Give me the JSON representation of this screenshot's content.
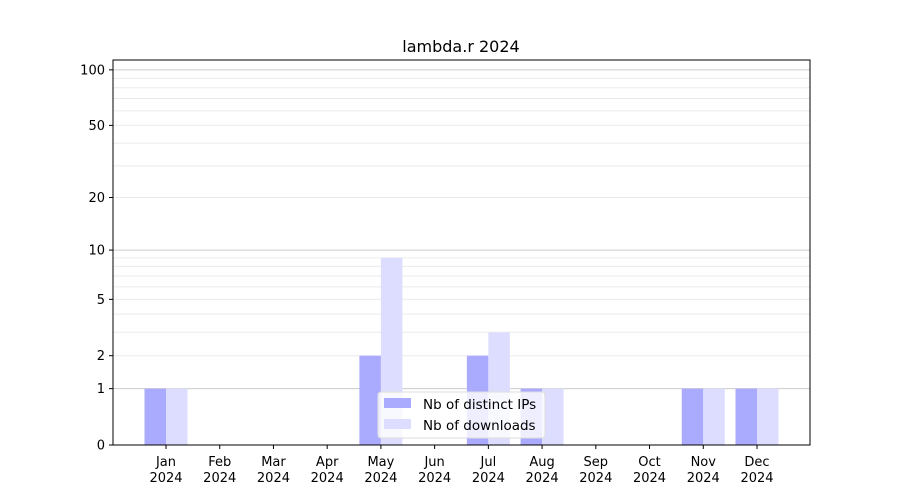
{
  "chart_data": {
    "type": "bar",
    "title": "lambda.r 2024",
    "xlabel": "",
    "ylabel": "",
    "y_scale": "symlog (log10(1+y))",
    "ylim": [
      0,
      113
    ],
    "yticks": [
      0,
      1,
      2,
      5,
      10,
      20,
      50,
      100
    ],
    "grid": true,
    "legend_position": "lower center",
    "categories": [
      [
        "Jan",
        "2024"
      ],
      [
        "Feb",
        "2024"
      ],
      [
        "Mar",
        "2024"
      ],
      [
        "Apr",
        "2024"
      ],
      [
        "May",
        "2024"
      ],
      [
        "Jun",
        "2024"
      ],
      [
        "Jul",
        "2024"
      ],
      [
        "Aug",
        "2024"
      ],
      [
        "Sep",
        "2024"
      ],
      [
        "Oct",
        "2024"
      ],
      [
        "Nov",
        "2024"
      ],
      [
        "Dec",
        "2024"
      ]
    ],
    "series": [
      {
        "name": "Nb of distinct IPs",
        "color": "#aaaaff",
        "values": [
          1,
          0,
          0,
          0,
          2,
          0,
          2,
          1,
          0,
          0,
          1,
          1
        ]
      },
      {
        "name": "Nb of downloads",
        "color": "#ddddff",
        "values": [
          1,
          0,
          0,
          0,
          9,
          0,
          3,
          1,
          0,
          0,
          1,
          1
        ]
      }
    ]
  }
}
